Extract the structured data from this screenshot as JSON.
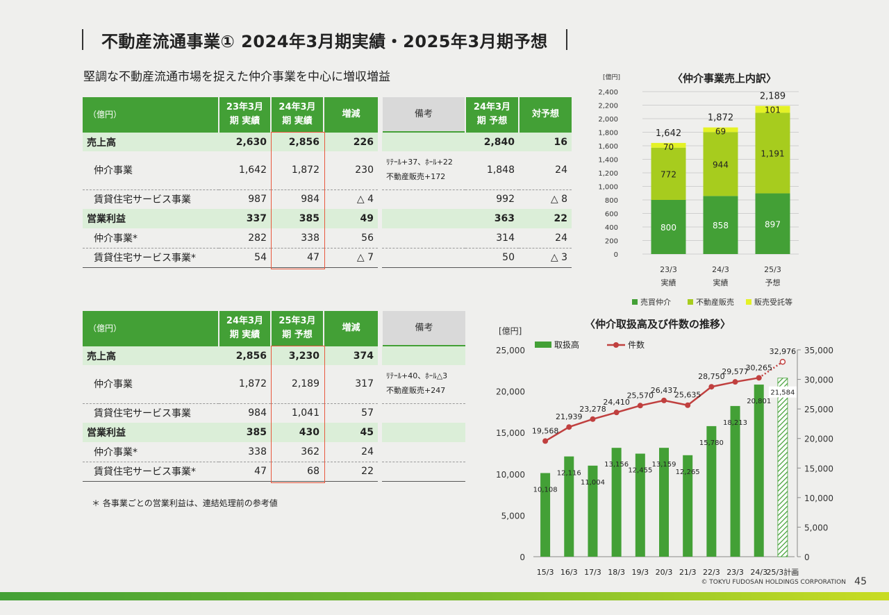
{
  "title": "不動産流通事業① 2024年3月期実績・2025年3月期予想",
  "subtitle": "堅調な不動産流通市場を捉えた仲介事業を中心に増収増益",
  "table1": {
    "unit": "（億円）",
    "headers": [
      "23年3月期 実績",
      "24年3月期 実績",
      "増減",
      "備考",
      "24年3月期 予想",
      "対予想"
    ],
    "rows": [
      {
        "label": "売上高",
        "v1": "2,630",
        "v2": "2,856",
        "diff": "226",
        "note": "",
        "plan": "2,840",
        "vsplan": "16"
      },
      {
        "label": "仲介事業",
        "v1": "1,642",
        "v2": "1,872",
        "diff": "230",
        "note1": "ﾘﾃｰﾙ+37、ﾎｰﾙ+22",
        "note2": "不動産販売+172",
        "plan": "1,848",
        "vsplan": "24"
      },
      {
        "label": "賃貸住宅サービス事業",
        "v1": "987",
        "v2": "984",
        "diff": "△ 4",
        "note": "",
        "plan": "992",
        "vsplan": "△ 8"
      },
      {
        "label": "営業利益",
        "v1": "337",
        "v2": "385",
        "diff": "49",
        "note": "",
        "plan": "363",
        "vsplan": "22"
      },
      {
        "label": "仲介事業*",
        "v1": "282",
        "v2": "338",
        "diff": "56",
        "note": "",
        "plan": "314",
        "vsplan": "24"
      },
      {
        "label": "賃貸住宅サービス事業*",
        "v1": "54",
        "v2": "47",
        "diff": "△ 7",
        "note": "",
        "plan": "50",
        "vsplan": "△ 3"
      }
    ]
  },
  "table2": {
    "unit": "（億円）",
    "headers": [
      "24年3月期 実績",
      "25年3月期 予想",
      "増減",
      "備考"
    ],
    "rows": [
      {
        "label": "売上高",
        "v1": "2,856",
        "v2": "3,230",
        "diff": "374",
        "note": ""
      },
      {
        "label": "仲介事業",
        "v1": "1,872",
        "v2": "2,189",
        "diff": "317",
        "note1": "ﾘﾃｰﾙ+40、ﾎｰﾙ△3",
        "note2": "不動産販売+247"
      },
      {
        "label": "賃貸住宅サービス事業",
        "v1": "984",
        "v2": "1,041",
        "diff": "57",
        "note": ""
      },
      {
        "label": "営業利益",
        "v1": "385",
        "v2": "430",
        "diff": "45",
        "note": ""
      },
      {
        "label": "仲介事業*",
        "v1": "338",
        "v2": "362",
        "diff": "24",
        "note": ""
      },
      {
        "label": "賃貸住宅サービス事業*",
        "v1": "47",
        "v2": "68",
        "diff": "22",
        "note": ""
      }
    ]
  },
  "footnote": "＊ 各事業ごとの営業利益は、連結処理前の参考値",
  "chart_data": [
    {
      "type": "bar",
      "stacked": true,
      "title": "〈仲介事業売上内訳〉",
      "unit": "[億円]",
      "categories": [
        "23/3 実績",
        "24/3 実績",
        "25/3 予想"
      ],
      "category_lines": [
        [
          "23/3",
          "実績"
        ],
        [
          "24/3",
          "実績"
        ],
        [
          "25/3",
          "予想"
        ]
      ],
      "series": [
        {
          "name": "売買仲介",
          "values": [
            800,
            858,
            897
          ],
          "color": "#43a036"
        },
        {
          "name": "不動産販売",
          "values": [
            772,
            944,
            1191
          ],
          "color": "#a7cc1e"
        },
        {
          "name": "販売受託等",
          "values": [
            70,
            69,
            101
          ],
          "color": "#e4f226"
        }
      ],
      "totals": [
        "1,642",
        "1,872",
        "2,189"
      ],
      "value_labels": [
        [
          "800",
          "772",
          "70"
        ],
        [
          "858",
          "944",
          "69"
        ],
        [
          "897",
          "1,191",
          "101"
        ]
      ],
      "ylim": [
        0,
        2400
      ],
      "yticks": [
        "0",
        "200",
        "400",
        "600",
        "800",
        "1,000",
        "1,200",
        "1,400",
        "1,600",
        "1,800",
        "2,000",
        "2,200",
        "2,400"
      ],
      "legend": "bottom"
    },
    {
      "type": "bar+line",
      "title": "〈仲介取扱高及び件数の推移〉",
      "unit": "[億円]",
      "categories": [
        "15/3",
        "16/3",
        "17/3",
        "18/3",
        "19/3",
        "20/3",
        "21/3",
        "22/3",
        "23/3",
        "24/3",
        "25/3計画"
      ],
      "series": [
        {
          "name": "取扱高",
          "type": "bar",
          "axis": "left",
          "values": [
            10108,
            12116,
            11004,
            13156,
            12455,
            13159,
            12265,
            15780,
            18213,
            20801,
            21584
          ],
          "labels": [
            "10,108",
            "12,116",
            "11,004",
            "13,156",
            "12,455",
            "13,159",
            "12,265",
            "15,780",
            "18,213",
            "20,801",
            "21,584"
          ],
          "color": "#43a036",
          "plan_last": true
        },
        {
          "name": "件数",
          "type": "line",
          "axis": "right",
          "values": [
            19568,
            21939,
            23278,
            24410,
            25570,
            26437,
            25635,
            28750,
            29577,
            30265,
            32976
          ],
          "labels": [
            "19,568",
            "21,939",
            "23,278",
            "24,410",
            "25,570",
            "26,437",
            "25,635",
            "28,750",
            "29,577",
            "30,265",
            "32,976"
          ],
          "color": "#c0403f",
          "plan_last": true
        }
      ],
      "ylim_left": [
        0,
        25000
      ],
      "yticks_left": [
        "0",
        "5,000",
        "10,000",
        "15,000",
        "20,000",
        "25,000"
      ],
      "ylim_right": [
        0,
        35000
      ],
      "yticks_right": [
        "0",
        "5,000",
        "10,000",
        "15,000",
        "20,000",
        "25,000",
        "30,000",
        "35,000"
      ],
      "legend": "top-left"
    }
  ],
  "copyright": "© TOKYU FUDOSAN HOLDINGS CORPORATION",
  "page_number": "45"
}
